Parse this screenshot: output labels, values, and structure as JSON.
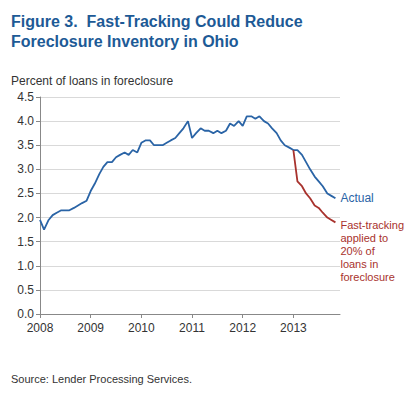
{
  "chart_data": {
    "type": "line",
    "title": "Figure 3.  Fast-Tracking Could Reduce\nForeclosure Inventory in Ohio",
    "y_label": "Percent of loans in foreclosure",
    "source": "Source: Lender Processing Services.",
    "xlim": [
      2008,
      2013.92
    ],
    "xticks": [
      2008,
      2009,
      2010,
      2011,
      2012,
      2013
    ],
    "ylim": [
      0,
      4.5
    ],
    "yticks": [
      {
        "value": 0,
        "label": "0.0"
      },
      0.5,
      {
        "value": 1,
        "label": "1.0"
      },
      1.5,
      {
        "value": 2,
        "label": "2.0"
      },
      2.5,
      {
        "value": 3,
        "label": "3.0"
      },
      3.5,
      {
        "value": 4,
        "label": "4.0"
      },
      4.5
    ],
    "grid": true,
    "series": [
      {
        "name": "Actual",
        "color": "#2a64a6",
        "marker": "none",
        "line_style": "solid",
        "x": [
          2008.0,
          2008.08,
          2008.17,
          2008.25,
          2008.33,
          2008.42,
          2008.5,
          2008.58,
          2008.67,
          2008.75,
          2008.83,
          2008.92,
          2009.0,
          2009.08,
          2009.17,
          2009.25,
          2009.33,
          2009.42,
          2009.5,
          2009.58,
          2009.67,
          2009.75,
          2009.83,
          2009.92,
          2010.0,
          2010.08,
          2010.17,
          2010.25,
          2010.33,
          2010.42,
          2010.5,
          2010.58,
          2010.67,
          2010.75,
          2010.83,
          2010.92,
          2011.0,
          2011.08,
          2011.17,
          2011.25,
          2011.33,
          2011.42,
          2011.5,
          2011.58,
          2011.67,
          2011.75,
          2011.83,
          2011.92,
          2012.0,
          2012.08,
          2012.17,
          2012.25,
          2012.33,
          2012.42,
          2012.5,
          2012.58,
          2012.67,
          2012.75,
          2012.83,
          2012.92,
          2013.0,
          2013.08,
          2013.17,
          2013.25,
          2013.33,
          2013.42,
          2013.5,
          2013.58,
          2013.67,
          2013.75,
          2013.83
        ],
        "values": [
          1.95,
          1.75,
          1.95,
          2.05,
          2.1,
          2.15,
          2.15,
          2.15,
          2.2,
          2.25,
          2.3,
          2.35,
          2.55,
          2.7,
          2.9,
          3.05,
          3.15,
          3.15,
          3.25,
          3.3,
          3.35,
          3.3,
          3.4,
          3.35,
          3.55,
          3.6,
          3.6,
          3.5,
          3.5,
          3.5,
          3.55,
          3.6,
          3.65,
          3.75,
          3.85,
          4.0,
          3.65,
          3.75,
          3.85,
          3.8,
          3.8,
          3.75,
          3.8,
          3.75,
          3.8,
          3.95,
          3.9,
          4.0,
          3.9,
          4.1,
          4.1,
          4.05,
          4.1,
          4.0,
          3.95,
          3.85,
          3.75,
          3.6,
          3.5,
          3.45,
          3.4,
          3.4,
          3.3,
          3.15,
          3.0,
          2.85,
          2.75,
          2.65,
          2.5,
          2.45,
          2.4
        ]
      },
      {
        "name": "Fast-tracking\napplied to\n20% of\nloans in\nforeclosure",
        "color": "#a8322d",
        "marker": "none",
        "line_style": "solid",
        "x": [
          2013.0,
          2013.08,
          2013.17,
          2013.25,
          2013.33,
          2013.42,
          2013.5,
          2013.58,
          2013.67,
          2013.75,
          2013.83
        ],
        "values": [
          3.4,
          2.75,
          2.65,
          2.5,
          2.4,
          2.25,
          2.2,
          2.1,
          2.0,
          1.95,
          1.9
        ]
      }
    ]
  }
}
